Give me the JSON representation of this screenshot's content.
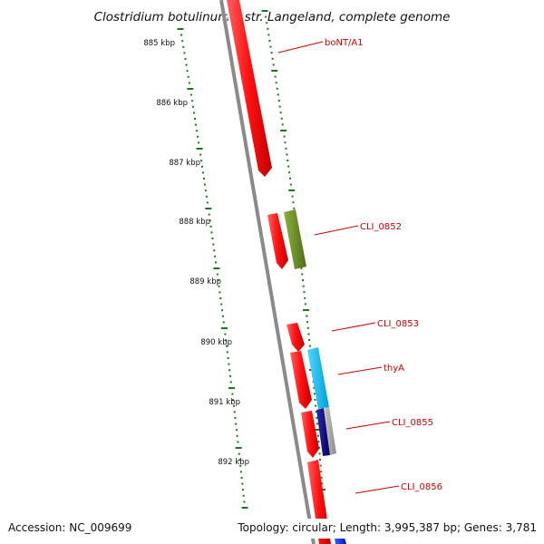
{
  "title": "Clostridium botulinum F str. Langeland, complete genome",
  "ruler_labels": [
    "885 kbp",
    "886 kbp",
    "887 kbp",
    "888 kbp",
    "889 kbp",
    "890 kbp",
    "891 kbp",
    "892 kbp"
  ],
  "gene_labels": [
    "boNT/A1",
    "CLI_0852",
    "CLI_0853",
    "thyA",
    "CLI_0855",
    "CLI_0856"
  ],
  "footer": {
    "accession": "Accession: NC_009699",
    "stats": "Topology: circular; Length: 3,995,387 bp; Genes: 3,781"
  },
  "colors": {
    "cds_forward": "#ff1a1a",
    "cds_olive": "#6b8e23",
    "cds_cyan": "#00bfff",
    "cds_navy": "#000080",
    "cds_gray": "#a0a0a0",
    "ticks": "#1a7a1a",
    "backbone": "#808080"
  }
}
